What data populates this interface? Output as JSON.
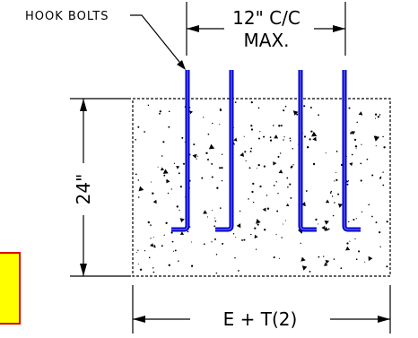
{
  "labels": {
    "hook_bolts": "HOOK BOLTS",
    "spacing_line1": "12\" C/C",
    "spacing_line2": "MAX.",
    "height": "24\"",
    "width": "E + T(2)"
  },
  "colors": {
    "bolt": "#0000cc",
    "bolt_highlight": "#7070ff",
    "line": "#000000",
    "callout_fill": "#ffff00",
    "callout_border": "#dd0000"
  }
}
